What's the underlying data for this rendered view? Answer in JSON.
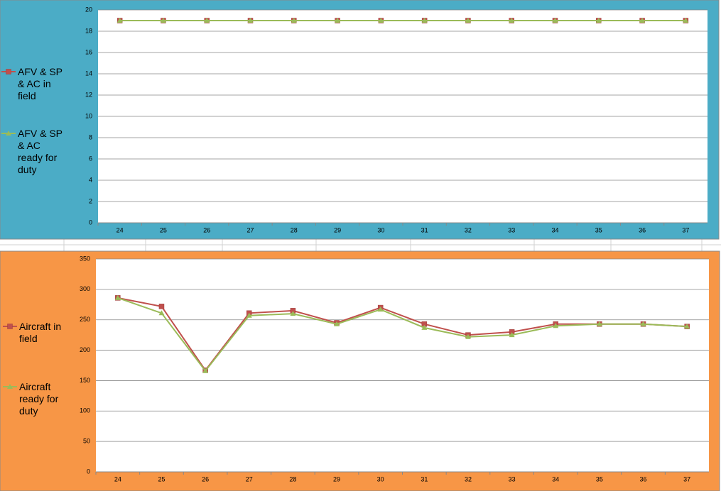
{
  "chart_data": [
    {
      "type": "line",
      "categories": [
        "24",
        "25",
        "26",
        "27",
        "28",
        "29",
        "30",
        "31",
        "32",
        "33",
        "34",
        "35",
        "36",
        "37"
      ],
      "series": [
        {
          "name": "AFV & SP & AC in field",
          "color": "#c0504d",
          "values": [
            19,
            19,
            19,
            19,
            19,
            19,
            19,
            19,
            19,
            19,
            19,
            19,
            19,
            19
          ]
        },
        {
          "name": "AFV & SP & AC ready for duty",
          "color": "#9bbb59",
          "values": [
            19,
            19,
            19,
            19,
            19,
            19,
            19,
            19,
            19,
            19,
            19,
            19,
            19,
            19
          ]
        }
      ],
      "ylim": [
        0,
        20
      ],
      "yticks": [
        0,
        2,
        4,
        6,
        8,
        10,
        12,
        14,
        16,
        18,
        20
      ],
      "grid": true,
      "legend": "left",
      "background": "#4bacc6"
    },
    {
      "type": "line",
      "categories": [
        "24",
        "25",
        "26",
        "27",
        "28",
        "29",
        "30",
        "31",
        "32",
        "33",
        "34",
        "35",
        "36",
        "37"
      ],
      "series": [
        {
          "name": "Aircraft in field",
          "color": "#c0504d",
          "values": [
            286,
            272,
            167,
            261,
            265,
            245,
            270,
            243,
            225,
            230,
            243,
            243,
            243,
            239
          ]
        },
        {
          "name": "Aircraft ready for duty",
          "color": "#9bbb59",
          "values": [
            286,
            261,
            166,
            257,
            260,
            243,
            267,
            237,
            222,
            225,
            240,
            243,
            243,
            239
          ]
        }
      ],
      "ylim": [
        0,
        350
      ],
      "yticks": [
        0,
        50,
        100,
        150,
        200,
        250,
        300,
        350
      ],
      "grid": true,
      "legend": "left",
      "background": "#f79646"
    }
  ]
}
